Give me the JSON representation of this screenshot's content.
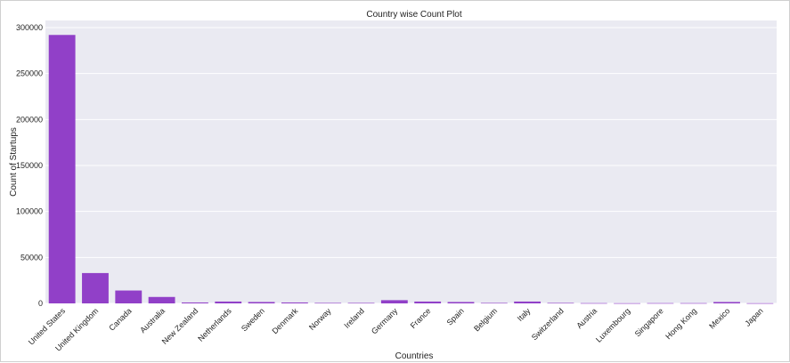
{
  "chart_data": {
    "type": "bar",
    "title": "Country wise Count Plot",
    "xlabel": "Countries",
    "ylabel": "Count of Startups",
    "ylim": [
      0,
      300000
    ],
    "yticks": [
      0,
      50000,
      100000,
      150000,
      200000,
      250000,
      300000
    ],
    "ytick_labels": [
      "0",
      "50000",
      "100000",
      "150000",
      "200000",
      "250000",
      "300000"
    ],
    "grid": true,
    "bar_color": "#9140C8",
    "background_color": "#EAEAF2",
    "categories": [
      "United States",
      "United Kingdom",
      "Canada",
      "Australia",
      "New Zealand",
      "Netherlands",
      "Sweden",
      "Denmark",
      "Norway",
      "Ireland",
      "Germany",
      "France",
      "Spain",
      "Belgium",
      "Italy",
      "Switzerland",
      "Austria",
      "Luxembourg",
      "Singapore",
      "Hong Kong",
      "Mexico",
      "Japan"
    ],
    "values": [
      292000,
      33000,
      14000,
      7000,
      1000,
      2000,
      1500,
      1000,
      500,
      500,
      3500,
      2000,
      1500,
      500,
      2000,
      500,
      300,
      200,
      300,
      300,
      1500,
      200
    ]
  }
}
